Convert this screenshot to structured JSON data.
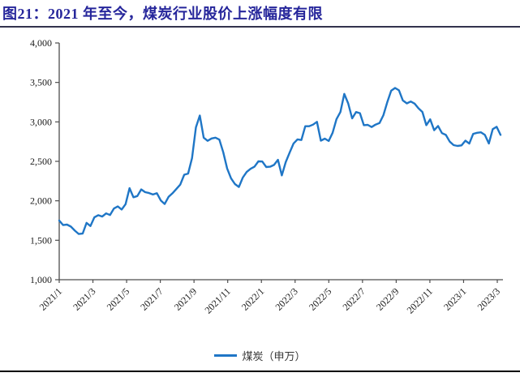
{
  "colors": {
    "title": "#26269B",
    "title_rule": "#33334D",
    "axis": "#4D4D4D",
    "tick_text": "#1A1A1A",
    "line": "#1F76C6",
    "legend_text": "#333333",
    "bottom_rule": "#000000"
  },
  "legend": {
    "label": "煤炭（申万）"
  },
  "chart_data": {
    "type": "line",
    "title": "图21：2021 年至今，煤炭行业股价上涨幅度有限",
    "xlabel": "",
    "ylabel": "",
    "ylim": [
      1000,
      4000
    ],
    "y_ticks": [
      1000,
      1500,
      2000,
      2500,
      3000,
      3500,
      4000
    ],
    "y_tick_labels": [
      "1,000",
      "1,500",
      "2,000",
      "2,500",
      "3,000",
      "3,500",
      "4,000"
    ],
    "x_tick_labels": [
      "2021/1",
      "2021/3",
      "2021/5",
      "2021/7",
      "2021/9",
      "2021/11",
      "2022/1",
      "2022/3",
      "2022/5",
      "2022/7",
      "2022/9",
      "2022/11",
      "2023/1",
      "2023/3"
    ],
    "grid": false,
    "legend_position": "bottom",
    "series": [
      {
        "name": "煤炭（申万）",
        "color": "#1F76C6",
        "frequency": "weekly",
        "values": [
          1750,
          1692,
          1699,
          1673,
          1622,
          1579,
          1585,
          1720,
          1680,
          1790,
          1818,
          1800,
          1840,
          1820,
          1902,
          1929,
          1890,
          1958,
          2160,
          2045,
          2060,
          2145,
          2110,
          2098,
          2080,
          2096,
          2005,
          1960,
          2050,
          2095,
          2150,
          2205,
          2330,
          2345,
          2540,
          2930,
          3080,
          2800,
          2760,
          2790,
          2800,
          2775,
          2615,
          2410,
          2285,
          2212,
          2175,
          2295,
          2365,
          2405,
          2432,
          2500,
          2498,
          2428,
          2432,
          2455,
          2520,
          2322,
          2490,
          2610,
          2725,
          2778,
          2770,
          2945,
          2945,
          2965,
          3000,
          2762,
          2788,
          2758,
          2862,
          3035,
          3125,
          3355,
          3235,
          3045,
          3125,
          3110,
          2958,
          2962,
          2935,
          2965,
          2985,
          3085,
          3250,
          3395,
          3430,
          3400,
          3272,
          3235,
          3258,
          3232,
          3172,
          3126,
          2958,
          3032,
          2895,
          2948,
          2858,
          2835,
          2750,
          2705,
          2695,
          2702,
          2762,
          2725,
          2848,
          2862,
          2868,
          2835,
          2726,
          2908,
          2938,
          2835
        ]
      }
    ]
  }
}
